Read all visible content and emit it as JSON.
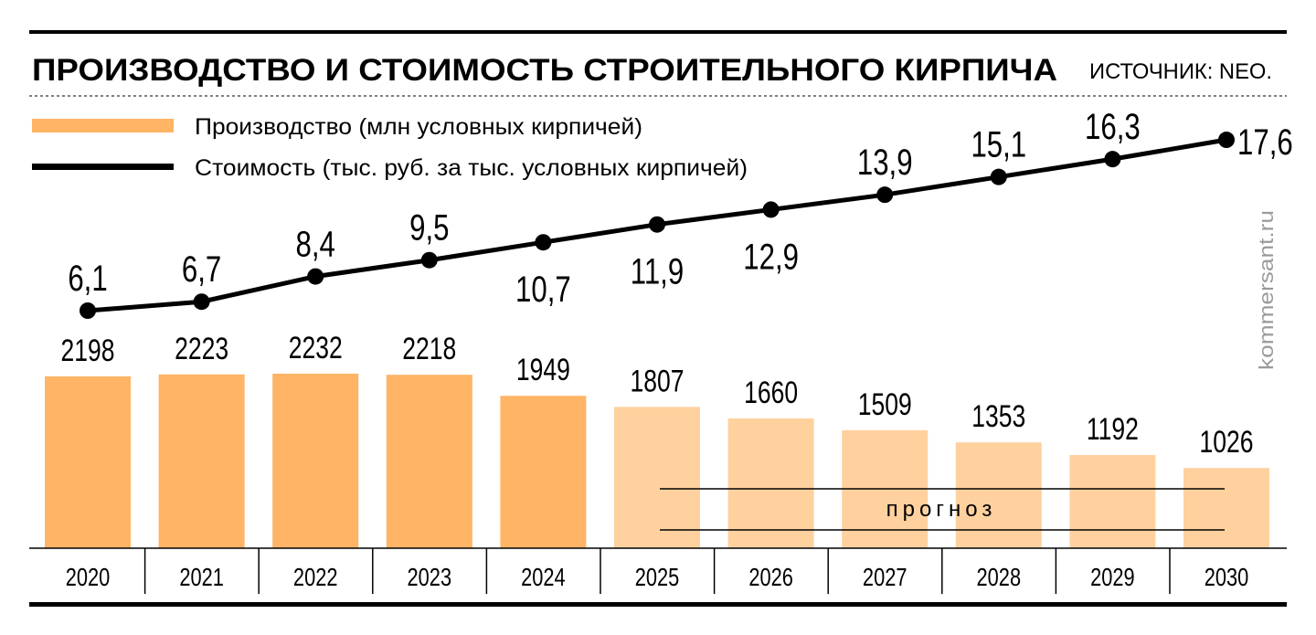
{
  "chart_data": {
    "type": "bar",
    "title": "ПРОИЗВОДСТВО И СТОИМОСТЬ СТРОИТЕЛЬНОГО КИРПИЧА",
    "source": "ИСТОЧНИК: NEO.",
    "watermark": "kommersant.ru",
    "forecast_label": "прогноз",
    "categories": [
      "2020",
      "2021",
      "2022",
      "2023",
      "2024",
      "2025",
      "2026",
      "2027",
      "2028",
      "2029",
      "2030"
    ],
    "forecast_from": "2025",
    "series": [
      {
        "name": "Производство (млн условных кирпичей)",
        "type": "bar",
        "color": "#ffb466",
        "forecast_color": "#ffd19e",
        "values": [
          2198,
          2223,
          2232,
          2218,
          1949,
          1807,
          1660,
          1509,
          1353,
          1192,
          1026
        ],
        "labels": [
          "2198",
          "2223",
          "2232",
          "2218",
          "1949",
          "1807",
          "1660",
          "1509",
          "1353",
          "1192",
          "1026"
        ]
      },
      {
        "name": "Стоимость (тыс. руб. за тыс. условных кирпичей)",
        "type": "line",
        "color": "#000000",
        "values": [
          6.1,
          6.7,
          8.4,
          9.5,
          10.7,
          11.9,
          12.9,
          13.9,
          15.1,
          16.3,
          17.6
        ],
        "labels": [
          "6,1",
          "6,7",
          "8,4",
          "9,5",
          "10,7",
          "11,9",
          "12,9",
          "13,9",
          "15,1",
          "16,3",
          "17,6"
        ]
      }
    ],
    "xlabel": "",
    "ylabel": "",
    "grid": false,
    "legend": "top-left"
  }
}
